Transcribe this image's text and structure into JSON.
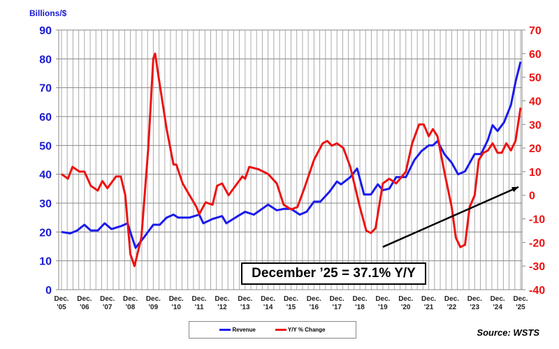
{
  "chart_data": {
    "type": "line",
    "left_axis_label": "Billions/$",
    "left_ylim": [
      0,
      90
    ],
    "left_ticks": [
      0,
      10,
      20,
      30,
      40,
      50,
      60,
      70,
      80,
      90
    ],
    "right_ylim": [
      -40,
      70
    ],
    "right_ticks": [
      -40,
      -30,
      -20,
      -10,
      0,
      10,
      20,
      30,
      40,
      50,
      60,
      70
    ],
    "x_range": [
      2005.92,
      2025.92
    ],
    "x_tick_labels": [
      [
        "Dec.",
        "'05"
      ],
      [
        "Dec.",
        "'06"
      ],
      [
        "Dec.",
        "'07"
      ],
      [
        "Dec.",
        "'08"
      ],
      [
        "Dec.",
        "'09"
      ],
      [
        "Dec.",
        "'10"
      ],
      [
        "Dec.",
        "'11"
      ],
      [
        "Dec.",
        "'12"
      ],
      [
        "Dec.",
        "'13"
      ],
      [
        "Dec.",
        "'14"
      ],
      [
        "Dec.",
        "'15"
      ],
      [
        "Dec.",
        "'16"
      ],
      [
        "Dec.",
        "'17"
      ],
      [
        "Dec.",
        "'18"
      ],
      [
        "Dec.",
        "'19"
      ],
      [
        "Dec.",
        "'20"
      ],
      [
        "Dec.",
        "'21"
      ],
      [
        "Dec.",
        "'22"
      ],
      [
        "Dec.",
        "'23"
      ],
      [
        "Dec.",
        "'24"
      ],
      [
        "Dec.",
        "'25"
      ]
    ],
    "grid": true,
    "colors": {
      "revenue": "#1a1aee",
      "yoy": "#ee1111",
      "left_axis": "#1a1ad4",
      "right_axis": "#ee1111"
    },
    "series": [
      {
        "name": "Revenue",
        "axis": "left",
        "points": [
          [
            2005.92,
            20
          ],
          [
            2006.3,
            19.5
          ],
          [
            2006.6,
            20.5
          ],
          [
            2006.92,
            22.5
          ],
          [
            2007.2,
            20.5
          ],
          [
            2007.5,
            20.5
          ],
          [
            2007.8,
            23
          ],
          [
            2008.1,
            21
          ],
          [
            2008.5,
            22
          ],
          [
            2008.8,
            23
          ],
          [
            2009.0,
            18
          ],
          [
            2009.15,
            14.5
          ],
          [
            2009.5,
            18
          ],
          [
            2009.92,
            22.5
          ],
          [
            2010.2,
            22.5
          ],
          [
            2010.5,
            25
          ],
          [
            2010.8,
            26
          ],
          [
            2011.0,
            25
          ],
          [
            2011.5,
            25
          ],
          [
            2011.92,
            26
          ],
          [
            2012.1,
            23
          ],
          [
            2012.5,
            24.5
          ],
          [
            2012.92,
            25.5
          ],
          [
            2013.1,
            23
          ],
          [
            2013.6,
            25.5
          ],
          [
            2013.92,
            27
          ],
          [
            2014.3,
            26
          ],
          [
            2014.92,
            29.5
          ],
          [
            2015.3,
            27.5
          ],
          [
            2015.6,
            28
          ],
          [
            2015.92,
            28
          ],
          [
            2016.3,
            26
          ],
          [
            2016.6,
            27
          ],
          [
            2016.92,
            30.5
          ],
          [
            2017.2,
            30.5
          ],
          [
            2017.6,
            34
          ],
          [
            2017.92,
            37.5
          ],
          [
            2018.1,
            36.5
          ],
          [
            2018.5,
            39
          ],
          [
            2018.8,
            42
          ],
          [
            2019.1,
            33
          ],
          [
            2019.4,
            33
          ],
          [
            2019.7,
            36.5
          ],
          [
            2019.92,
            34.5
          ],
          [
            2020.2,
            35
          ],
          [
            2020.5,
            39
          ],
          [
            2020.92,
            39
          ],
          [
            2021.3,
            45
          ],
          [
            2021.6,
            48
          ],
          [
            2021.92,
            50
          ],
          [
            2022.1,
            50
          ],
          [
            2022.3,
            51.5
          ],
          [
            2022.6,
            47
          ],
          [
            2022.92,
            44
          ],
          [
            2023.2,
            40
          ],
          [
            2023.5,
            41
          ],
          [
            2023.92,
            47
          ],
          [
            2024.2,
            47
          ],
          [
            2024.5,
            52
          ],
          [
            2024.7,
            57
          ],
          [
            2024.92,
            55
          ],
          [
            2025.2,
            58
          ],
          [
            2025.5,
            64
          ],
          [
            2025.7,
            72
          ],
          [
            2025.92,
            79
          ]
        ]
      },
      {
        "name": "Y/Y % Change",
        "axis": "right",
        "points": [
          [
            2005.92,
            9
          ],
          [
            2006.2,
            7
          ],
          [
            2006.4,
            12
          ],
          [
            2006.7,
            10
          ],
          [
            2006.92,
            10
          ],
          [
            2007.2,
            4
          ],
          [
            2007.5,
            2
          ],
          [
            2007.7,
            6
          ],
          [
            2007.92,
            3
          ],
          [
            2008.3,
            8
          ],
          [
            2008.5,
            8
          ],
          [
            2008.7,
            0
          ],
          [
            2008.92,
            -25
          ],
          [
            2009.1,
            -30
          ],
          [
            2009.4,
            -18
          ],
          [
            2009.7,
            20
          ],
          [
            2009.92,
            58
          ],
          [
            2010.0,
            60
          ],
          [
            2010.15,
            50
          ],
          [
            2010.5,
            28
          ],
          [
            2010.8,
            13
          ],
          [
            2010.92,
            13
          ],
          [
            2011.2,
            5
          ],
          [
            2011.5,
            0
          ],
          [
            2011.8,
            -5
          ],
          [
            2011.92,
            -8
          ],
          [
            2012.2,
            -3
          ],
          [
            2012.5,
            -4
          ],
          [
            2012.7,
            4
          ],
          [
            2012.92,
            5
          ],
          [
            2013.2,
            0
          ],
          [
            2013.5,
            4
          ],
          [
            2013.8,
            8
          ],
          [
            2013.92,
            7
          ],
          [
            2014.1,
            12
          ],
          [
            2014.5,
            11
          ],
          [
            2014.92,
            9
          ],
          [
            2015.3,
            5
          ],
          [
            2015.6,
            -4
          ],
          [
            2015.92,
            -6
          ],
          [
            2016.2,
            -5
          ],
          [
            2016.5,
            3
          ],
          [
            2016.92,
            15
          ],
          [
            2017.3,
            22
          ],
          [
            2017.5,
            23
          ],
          [
            2017.7,
            21
          ],
          [
            2017.92,
            22
          ],
          [
            2018.2,
            20
          ],
          [
            2018.5,
            12
          ],
          [
            2018.92,
            -5
          ],
          [
            2019.2,
            -15
          ],
          [
            2019.4,
            -16
          ],
          [
            2019.6,
            -14
          ],
          [
            2019.92,
            5
          ],
          [
            2020.2,
            7
          ],
          [
            2020.5,
            5
          ],
          [
            2020.92,
            10
          ],
          [
            2021.2,
            22
          ],
          [
            2021.5,
            30
          ],
          [
            2021.7,
            30
          ],
          [
            2021.92,
            25
          ],
          [
            2022.1,
            28
          ],
          [
            2022.3,
            25
          ],
          [
            2022.6,
            10
          ],
          [
            2022.92,
            -5
          ],
          [
            2023.1,
            -18
          ],
          [
            2023.3,
            -22
          ],
          [
            2023.5,
            -21
          ],
          [
            2023.7,
            -5
          ],
          [
            2023.92,
            0
          ],
          [
            2024.1,
            15
          ],
          [
            2024.3,
            18
          ],
          [
            2024.5,
            19
          ],
          [
            2024.7,
            22
          ],
          [
            2024.92,
            18
          ],
          [
            2025.1,
            18
          ],
          [
            2025.3,
            22
          ],
          [
            2025.5,
            19
          ],
          [
            2025.7,
            23
          ],
          [
            2025.92,
            37.1
          ]
        ]
      }
    ],
    "trend_arrow": {
      "from": [
        2019.92,
        14.8
      ],
      "to": [
        2025.83,
        35.6
      ],
      "axis": "left",
      "color": "#000000"
    },
    "annotation": "December ’25 = 37.1% Y/Y",
    "legend": {
      "placement": "bottom-center",
      "entries": [
        "Revenue",
        "Y/Y % Change"
      ]
    },
    "source": "Source: WSTS"
  }
}
